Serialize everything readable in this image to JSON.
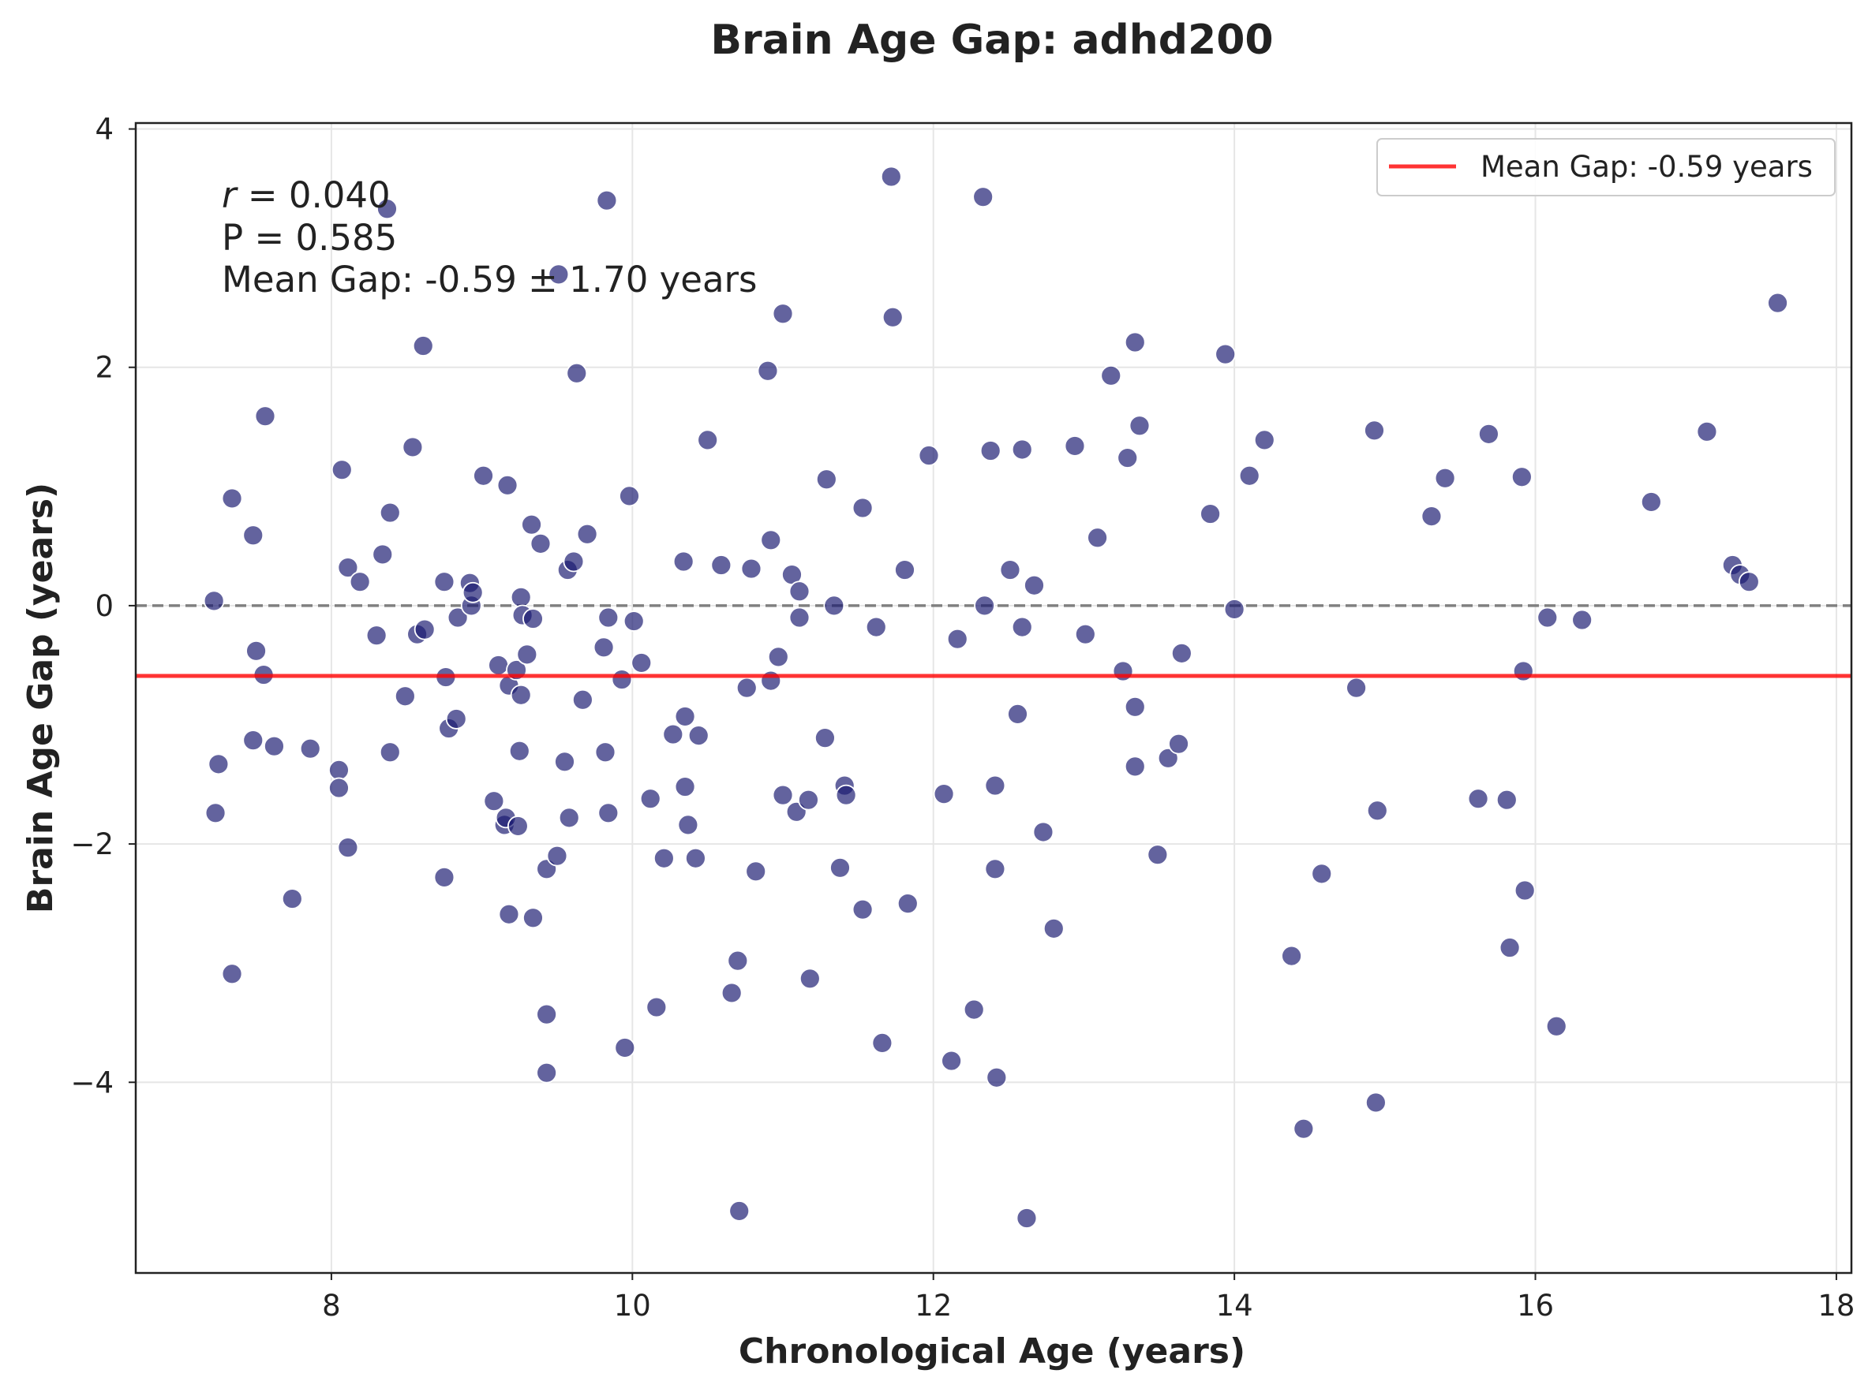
{
  "chart_data": {
    "type": "scatter",
    "title": "Brain Age Gap: adhd200",
    "xlabel": "Chronological Age (years)",
    "ylabel": "Brain Age Gap (years)",
    "xlim": [
      6.7,
      18.1
    ],
    "ylim": [
      -5.6,
      4.05
    ],
    "xticks": [
      8,
      10,
      12,
      14,
      16,
      18
    ],
    "xtick_labels": [
      "8",
      "10",
      "12",
      "14",
      "16",
      "18"
    ],
    "yticks": [
      -4,
      -2,
      0,
      2,
      4
    ],
    "ytick_labels": [
      "−4",
      "−2",
      "0",
      "2",
      "4"
    ],
    "grid": true,
    "point_color": "#191970",
    "zero_line_color": "#808080",
    "mean_line_color": "#ff0000",
    "mean_gap": -0.59,
    "legend_position": "top-right",
    "legend_label": "Mean Gap: -0.59 years",
    "stats": {
      "r_symbol": "r",
      "r_text": " = 0.040",
      "p_text": "P = 0.585",
      "mean_text": "Mean Gap: -0.59 ± 1.70 years"
    },
    "points": [
      [
        7.22,
        0.04
      ],
      [
        7.25,
        -1.33
      ],
      [
        7.23,
        -1.74
      ],
      [
        7.34,
        0.9
      ],
      [
        7.34,
        -3.09
      ],
      [
        7.48,
        0.59
      ],
      [
        7.48,
        -1.13
      ],
      [
        7.5,
        -0.38
      ],
      [
        7.55,
        -0.58
      ],
      [
        7.56,
        1.59
      ],
      [
        7.62,
        -1.18
      ],
      [
        7.74,
        -2.46
      ],
      [
        7.86,
        -1.2
      ],
      [
        8.05,
        -1.38
      ],
      [
        8.05,
        -1.53
      ],
      [
        8.07,
        1.14
      ],
      [
        8.11,
        0.32
      ],
      [
        8.11,
        -2.03
      ],
      [
        8.19,
        0.2
      ],
      [
        8.3,
        -0.25
      ],
      [
        8.34,
        0.43
      ],
      [
        8.37,
        3.33
      ],
      [
        8.39,
        0.78
      ],
      [
        8.39,
        -1.23
      ],
      [
        8.49,
        -0.76
      ],
      [
        8.54,
        1.33
      ],
      [
        8.57,
        -0.24
      ],
      [
        8.61,
        2.18
      ],
      [
        8.62,
        -0.2
      ],
      [
        8.75,
        0.2
      ],
      [
        8.76,
        -0.6
      ],
      [
        8.75,
        -2.28
      ],
      [
        8.78,
        -1.03
      ],
      [
        8.83,
        -0.95
      ],
      [
        8.84,
        -0.1
      ],
      [
        8.92,
        0.19
      ],
      [
        8.93,
        0.0
      ],
      [
        8.94,
        0.11
      ],
      [
        9.01,
        1.09
      ],
      [
        9.08,
        -1.64
      ],
      [
        9.11,
        -0.5
      ],
      [
        9.15,
        -1.84
      ],
      [
        9.16,
        -1.78
      ],
      [
        9.17,
        1.01
      ],
      [
        9.18,
        -2.59
      ],
      [
        9.18,
        -0.67
      ],
      [
        9.23,
        -0.54
      ],
      [
        9.24,
        -1.85
      ],
      [
        9.25,
        -1.22
      ],
      [
        9.26,
        0.07
      ],
      [
        9.27,
        -0.08
      ],
      [
        9.26,
        -0.75
      ],
      [
        9.3,
        -0.41
      ],
      [
        9.33,
        0.68
      ],
      [
        9.34,
        -0.11
      ],
      [
        9.34,
        -2.62
      ],
      [
        9.39,
        0.52
      ],
      [
        9.43,
        -2.21
      ],
      [
        9.43,
        -3.43
      ],
      [
        9.43,
        -3.92
      ],
      [
        9.5,
        -2.1
      ],
      [
        9.51,
        2.78
      ],
      [
        9.55,
        -1.31
      ],
      [
        9.57,
        0.3
      ],
      [
        9.58,
        -1.78
      ],
      [
        9.61,
        0.37
      ],
      [
        9.63,
        1.95
      ],
      [
        9.67,
        -0.79
      ],
      [
        9.7,
        0.6
      ],
      [
        9.81,
        -0.35
      ],
      [
        9.82,
        -1.23
      ],
      [
        9.83,
        3.4
      ],
      [
        9.84,
        -0.1
      ],
      [
        9.84,
        -1.74
      ],
      [
        9.93,
        -0.62
      ],
      [
        9.95,
        -3.71
      ],
      [
        9.98,
        0.92
      ],
      [
        10.01,
        -0.13
      ],
      [
        10.06,
        -0.48
      ],
      [
        10.12,
        -1.62
      ],
      [
        10.16,
        -3.37
      ],
      [
        10.21,
        -2.12
      ],
      [
        10.27,
        -1.08
      ],
      [
        10.34,
        0.37
      ],
      [
        10.35,
        -0.93
      ],
      [
        10.35,
        -1.52
      ],
      [
        10.37,
        -1.84
      ],
      [
        10.42,
        -2.12
      ],
      [
        10.44,
        -1.09
      ],
      [
        10.5,
        1.39
      ],
      [
        10.59,
        0.34
      ],
      [
        10.66,
        -3.25
      ],
      [
        10.7,
        -2.98
      ],
      [
        10.71,
        -5.08
      ],
      [
        10.76,
        -0.69
      ],
      [
        10.79,
        0.31
      ],
      [
        10.82,
        -2.23
      ],
      [
        10.9,
        1.97
      ],
      [
        10.92,
        0.55
      ],
      [
        10.92,
        -0.63
      ],
      [
        10.97,
        -0.43
      ],
      [
        11.0,
        2.45
      ],
      [
        11.0,
        -1.59
      ],
      [
        11.06,
        0.26
      ],
      [
        11.09,
        -1.73
      ],
      [
        11.11,
        0.12
      ],
      [
        11.11,
        -0.1
      ],
      [
        11.17,
        -1.63
      ],
      [
        11.18,
        -3.13
      ],
      [
        11.28,
        -1.11
      ],
      [
        11.29,
        1.06
      ],
      [
        11.34,
        0.0
      ],
      [
        11.38,
        -2.2
      ],
      [
        11.41,
        -1.51
      ],
      [
        11.42,
        -1.59
      ],
      [
        11.53,
        -2.55
      ],
      [
        11.53,
        0.82
      ],
      [
        11.62,
        -0.18
      ],
      [
        11.66,
        -3.67
      ],
      [
        11.72,
        3.6
      ],
      [
        11.73,
        2.42
      ],
      [
        11.81,
        0.3
      ],
      [
        11.83,
        -2.5
      ],
      [
        11.97,
        1.26
      ],
      [
        12.07,
        -1.58
      ],
      [
        12.12,
        -3.82
      ],
      [
        12.16,
        -0.28
      ],
      [
        12.27,
        -3.39
      ],
      [
        12.33,
        3.43
      ],
      [
        12.34,
        0.0
      ],
      [
        12.38,
        1.3
      ],
      [
        12.41,
        -1.51
      ],
      [
        12.41,
        -2.21
      ],
      [
        12.42,
        -3.96
      ],
      [
        12.51,
        0.3
      ],
      [
        12.56,
        -0.91
      ],
      [
        12.59,
        -0.18
      ],
      [
        12.59,
        1.31
      ],
      [
        12.62,
        -5.14
      ],
      [
        12.67,
        0.17
      ],
      [
        12.73,
        -1.9
      ],
      [
        12.8,
        -2.71
      ],
      [
        12.94,
        1.34
      ],
      [
        13.01,
        -0.24
      ],
      [
        13.09,
        0.57
      ],
      [
        13.18,
        1.93
      ],
      [
        13.26,
        -0.55
      ],
      [
        13.29,
        1.24
      ],
      [
        13.34,
        -0.85
      ],
      [
        13.34,
        -1.35
      ],
      [
        13.34,
        2.21
      ],
      [
        13.37,
        1.51
      ],
      [
        13.49,
        -2.09
      ],
      [
        13.56,
        -1.28
      ],
      [
        13.63,
        -1.16
      ],
      [
        13.65,
        -0.4
      ],
      [
        13.84,
        0.77
      ],
      [
        13.94,
        2.11
      ],
      [
        14.0,
        -0.03
      ],
      [
        14.1,
        1.09
      ],
      [
        14.2,
        1.39
      ],
      [
        14.38,
        -2.94
      ],
      [
        14.46,
        -4.39
      ],
      [
        14.58,
        -2.25
      ],
      [
        14.81,
        -0.69
      ],
      [
        14.93,
        1.47
      ],
      [
        14.94,
        -4.17
      ],
      [
        14.95,
        -1.72
      ],
      [
        15.31,
        0.75
      ],
      [
        15.4,
        1.07
      ],
      [
        15.62,
        -1.62
      ],
      [
        15.69,
        1.44
      ],
      [
        15.81,
        -1.63
      ],
      [
        15.83,
        -2.87
      ],
      [
        15.91,
        1.08
      ],
      [
        15.92,
        -0.55
      ],
      [
        15.93,
        -2.39
      ],
      [
        16.08,
        -0.1
      ],
      [
        16.14,
        -3.53
      ],
      [
        16.31,
        -0.12
      ],
      [
        16.77,
        0.87
      ],
      [
        17.14,
        1.46
      ],
      [
        17.31,
        0.34
      ],
      [
        17.36,
        0.26
      ],
      [
        17.42,
        0.2
      ],
      [
        17.61,
        2.54
      ]
    ]
  }
}
